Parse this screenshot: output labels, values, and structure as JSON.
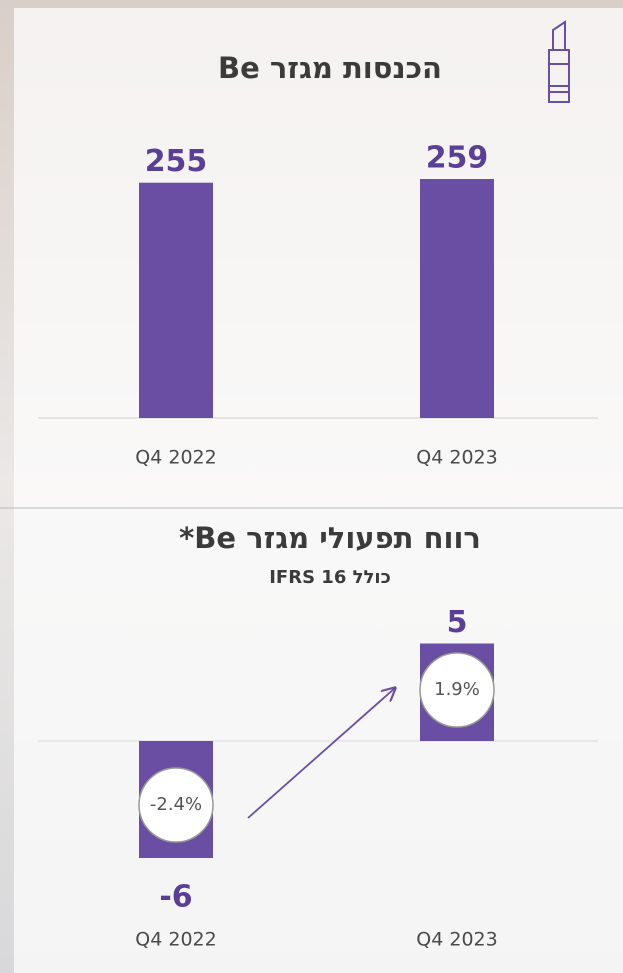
{
  "chart_data": [
    {
      "type": "bar",
      "title": "הכנסות מגזר Be",
      "categories": [
        "Q4 2022",
        "Q4 2023"
      ],
      "values": [
        255,
        259
      ],
      "color": "#6a4ea3"
    },
    {
      "type": "bar",
      "title": "רווח תפעולי מגזר Be*",
      "subtitle": "כולל IFRS 16",
      "categories": [
        "Q4 2022",
        "Q4 2023"
      ],
      "values": [
        -6,
        5
      ],
      "color": "#6a4ea3",
      "annotations": [
        {
          "value": -2.4,
          "label": "-2.4%"
        },
        {
          "value": 1.9,
          "label": "1.9%"
        }
      ]
    }
  ]
}
